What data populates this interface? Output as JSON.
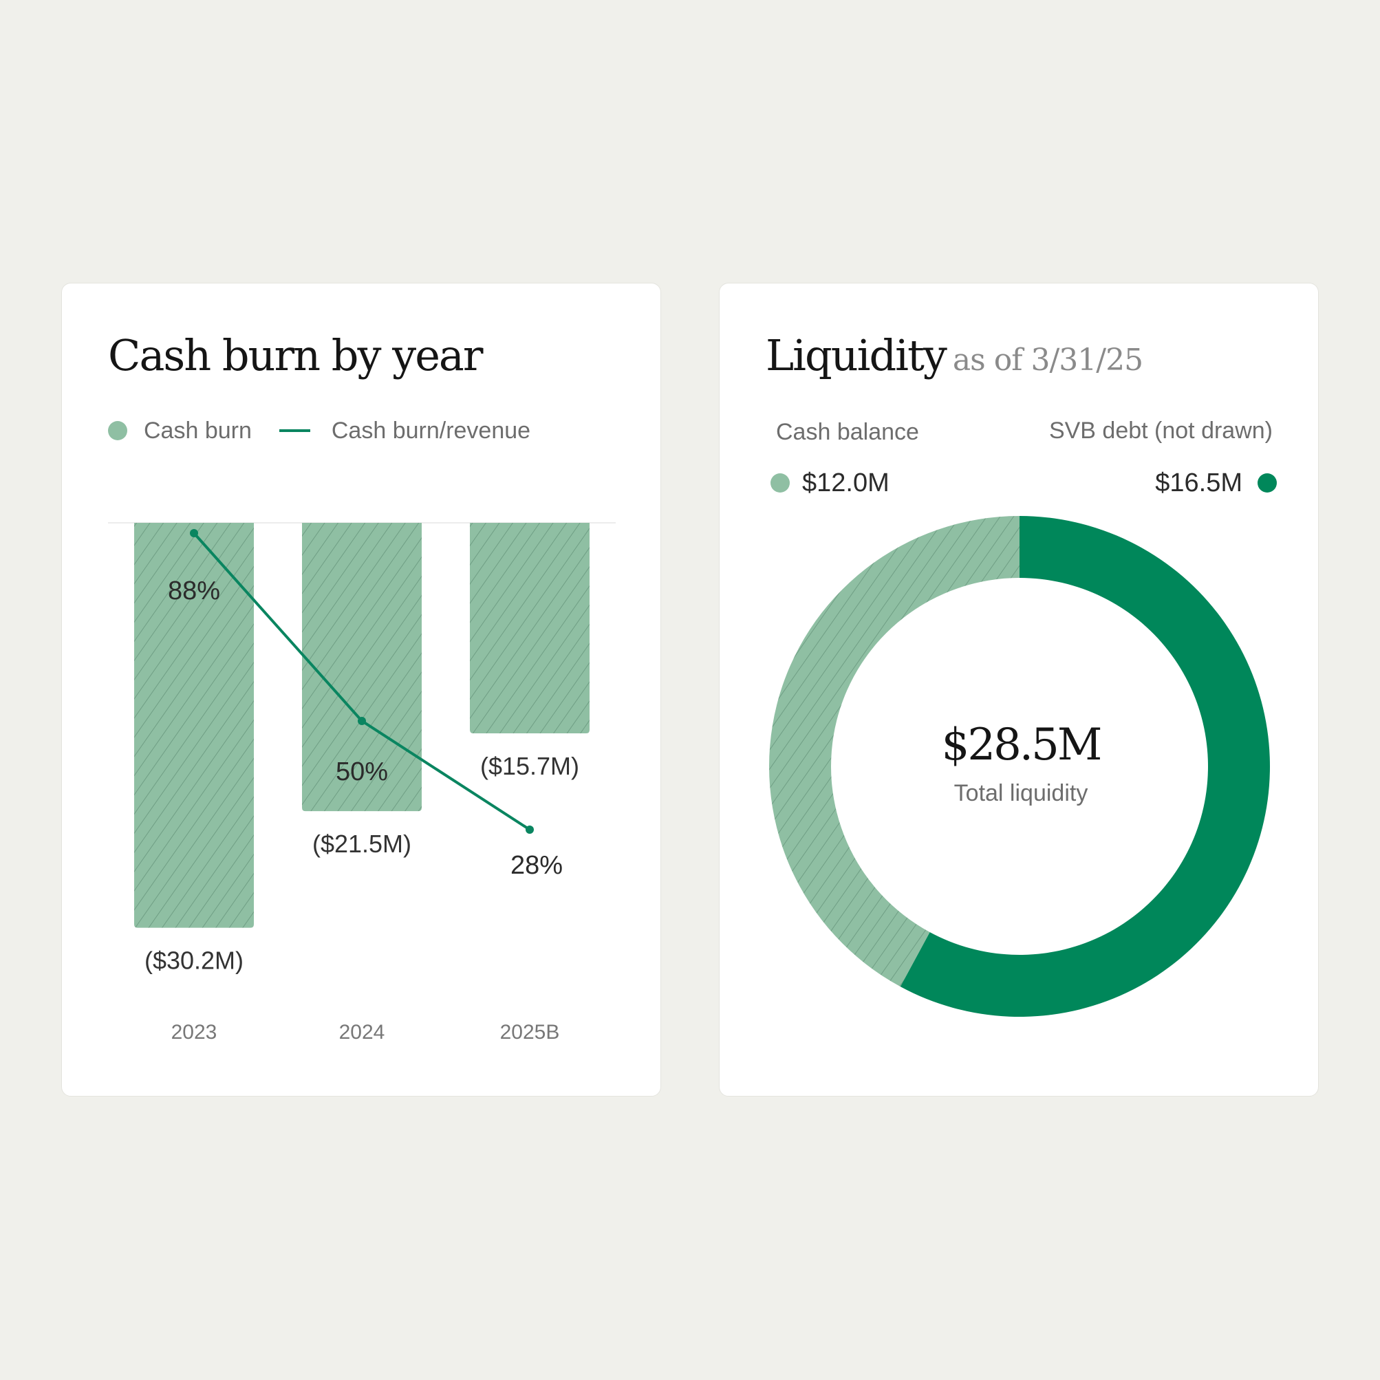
{
  "cash_burn_card": {
    "title": "Cash burn by year",
    "legend": {
      "bar_label": "Cash burn",
      "line_label": "Cash burn/revenue"
    }
  },
  "liquidity_card": {
    "title": "Liquidity",
    "title_suffix": "as of 3/31/25",
    "cash_label": "Cash balance",
    "cash_value": "$12.0M",
    "debt_label": "SVB debt (not drawn)",
    "debt_value": "$16.5M",
    "total_value": "$28.5M",
    "total_label": "Total liquidity"
  },
  "colors": {
    "bar": "#8fbfa3",
    "bar_stripe": "#6f9e84",
    "line": "#0a8560",
    "debt": "#00875a"
  },
  "chart_data": [
    {
      "type": "bar",
      "categories": [
        "2023",
        "2024",
        "2025B"
      ],
      "series": [
        {
          "name": "Cash burn",
          "values": [
            -30.2,
            -21.5,
            -15.7
          ],
          "labels": [
            "($30.2M)",
            "($21.5M)",
            "($15.7M)"
          ]
        },
        {
          "name": "Cash burn/revenue",
          "type": "line",
          "values": [
            88,
            50,
            28
          ],
          "labels": [
            "88%",
            "50%",
            "28%"
          ]
        }
      ],
      "ylim": [
        -31.5,
        0
      ],
      "line_ylim": [
        0,
        90
      ],
      "legend": "top-left",
      "grid": false
    },
    {
      "type": "pie",
      "donut": true,
      "slices": [
        {
          "name": "Cash balance",
          "value": 12.0,
          "label": "$12.0M",
          "color": "#8fbfa3",
          "pattern": "stripes"
        },
        {
          "name": "SVB debt (not drawn)",
          "value": 16.5,
          "label": "$16.5M",
          "color": "#00875a"
        }
      ],
      "total": 28.5,
      "center_value": "$28.5M",
      "center_label": "Total liquidity"
    }
  ]
}
